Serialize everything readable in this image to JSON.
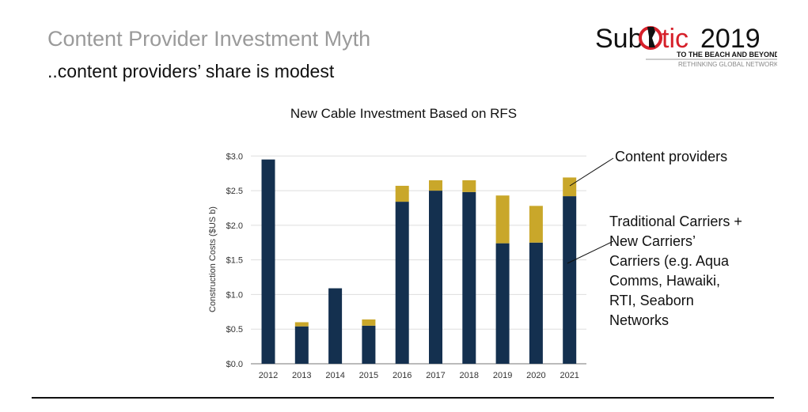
{
  "slide": {
    "title": "Content Provider Investment Myth",
    "subtitle": "..content providers’ share is modest",
    "logo": {
      "text": "SubOptic2019",
      "tagline": "TO THE BEACH AND BEYOND",
      "subtagline": "RETHINKING GLOBAL NETWORKS"
    }
  },
  "chart_data": {
    "type": "bar",
    "stacked": true,
    "title": "New Cable Investment Based on RFS",
    "xlabel": "",
    "ylabel": "Construction Costs ($US b)",
    "ylim": [
      0,
      3.0
    ],
    "yticks": [
      "$0.0",
      "$0.5",
      "$1.0",
      "$1.5",
      "$2.0",
      "$2.5",
      "$3.0"
    ],
    "grid": true,
    "categories": [
      "2012",
      "2013",
      "2014",
      "2015",
      "2016",
      "2017",
      "2018",
      "2019",
      "2020",
      "2021"
    ],
    "series": [
      {
        "name": "Traditional Carriers + New Carriers’ Carriers (e.g. Aqua Comms, Hawaiki, RTI, Seaborn Networks",
        "color": "#14304f",
        "values": [
          2.95,
          0.54,
          1.09,
          0.55,
          2.34,
          2.5,
          2.48,
          1.74,
          1.75,
          2.42
        ]
      },
      {
        "name": "Content providers",
        "color": "#c9a72a",
        "values": [
          0,
          0.06,
          0,
          0.09,
          0.23,
          0.15,
          0.17,
          0.69,
          0.53,
          0.27
        ]
      }
    ],
    "annotations": {
      "content": "Content providers",
      "carriers": [
        "Traditional Carriers +",
        "New Carriers’",
        "Carriers (e.g. Aqua",
        "Comms, Hawaiki,",
        "RTI, Seaborn",
        "Networks"
      ]
    }
  }
}
